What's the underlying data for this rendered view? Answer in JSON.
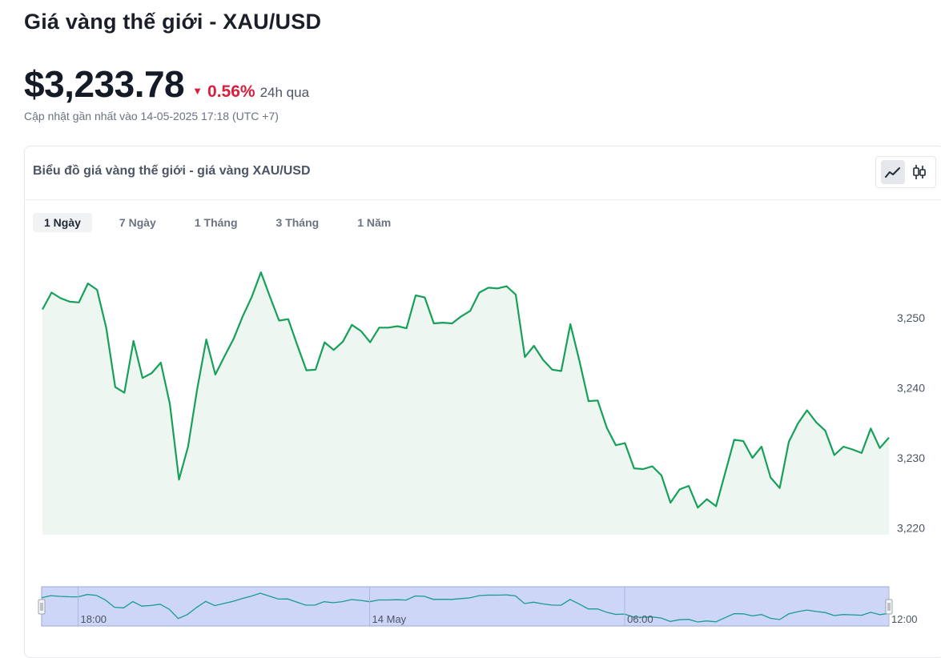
{
  "page": {
    "title": "Giá vàng thế giới - XAU/USD",
    "price": "$3,233.78",
    "change_arrow": "▼",
    "change_pct": "0.56%",
    "change_period": "24h qua",
    "updated": "Cập nhật gần nhất vào 14-05-2025 17:18 (UTC +7)"
  },
  "card": {
    "title": "Biểu đồ giá vàng thế giới - giá vàng XAU/USD",
    "view_modes": [
      {
        "icon": "line-chart-icon",
        "active": true
      },
      {
        "icon": "candlestick-icon",
        "active": false
      }
    ],
    "tabs": [
      "1 Ngày",
      "7 Ngày",
      "1 Tháng",
      "3 Tháng",
      "1 Năm"
    ],
    "active_tab": 0
  },
  "colors": {
    "line": "#16a05a",
    "fill": "#edf6f0",
    "negative": "#d81f3d",
    "navigator_bg": "#cdd6f6",
    "navigator_line": "#179c8e"
  },
  "chart_data": {
    "type": "area",
    "title": "",
    "xlabel": "",
    "ylabel": "",
    "ylim": [
      3219,
      3257
    ],
    "yticks": [
      3220,
      3230,
      3240,
      3250
    ],
    "ytick_labels": [
      "3,220",
      "3,230",
      "3,240",
      "3,250"
    ],
    "navigator_labels": [
      {
        "label": "18:00",
        "index": 4
      },
      {
        "label": "14 May",
        "index": 36
      },
      {
        "label": "06:00",
        "index": 64
      },
      {
        "label": "12:00",
        "index": 93
      }
    ],
    "series": [
      {
        "values": [
          3251.2,
          3253.6,
          3252.8,
          3252.3,
          3252.2,
          3254.9,
          3254.0,
          3248.6,
          3240.1,
          3239.3,
          3246.7,
          3241.4,
          3242.1,
          3243.6,
          3237.7,
          3226.9,
          3231.6,
          3239.8,
          3246.9,
          3241.9,
          3244.5,
          3247.0,
          3250.2,
          3253.0,
          3256.5,
          3253.0,
          3249.6,
          3249.8,
          3246.1,
          3242.5,
          3242.6,
          3246.5,
          3245.4,
          3246.6,
          3249.0,
          3248.1,
          3246.5,
          3248.6,
          3248.6,
          3248.8,
          3248.5,
          3253.2,
          3252.9,
          3249.2,
          3249.3,
          3249.2,
          3250.2,
          3251.0,
          3253.6,
          3254.3,
          3254.2,
          3254.5,
          3253.3,
          3244.4,
          3246.0,
          3244.0,
          3242.6,
          3242.4,
          3249.1,
          3243.8,
          3238.1,
          3238.2,
          3234.3,
          3231.8,
          3232.1,
          3228.5,
          3228.4,
          3228.8,
          3227.5,
          3223.6,
          3225.5,
          3226.0,
          3222.9,
          3224.1,
          3223.1,
          3227.8,
          3232.6,
          3232.4,
          3230.0,
          3231.6,
          3227.2,
          3225.7,
          3232.3,
          3234.9,
          3236.8,
          3235.1,
          3233.9,
          3230.4,
          3231.6,
          3231.2,
          3230.7,
          3234.2,
          3231.4,
          3232.9
        ]
      }
    ]
  }
}
